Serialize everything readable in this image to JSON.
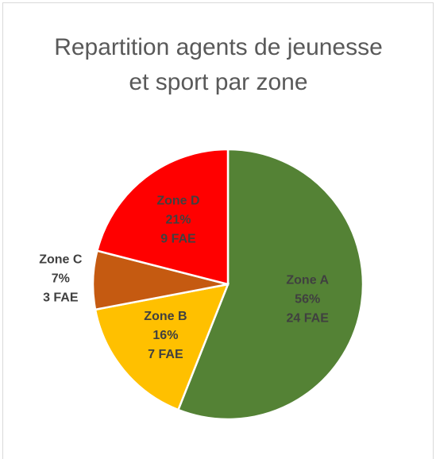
{
  "chart_data": {
    "type": "pie",
    "title": "Repartition agents de jeunesse et sport par zone",
    "categories": [
      "Zone A",
      "Zone B",
      "Zone C",
      "Zone D"
    ],
    "values": [
      56,
      16,
      7,
      21
    ],
    "value_labels": [
      "56%",
      "16%",
      "7%",
      "21%"
    ],
    "fae": [
      24,
      7,
      3,
      9
    ],
    "fae_labels": [
      "24 FAE",
      "7 FAE",
      "3 FAE",
      "9 FAE"
    ],
    "colors": [
      "#548235",
      "#ffc000",
      "#c55a11",
      "#ff0000"
    ]
  }
}
